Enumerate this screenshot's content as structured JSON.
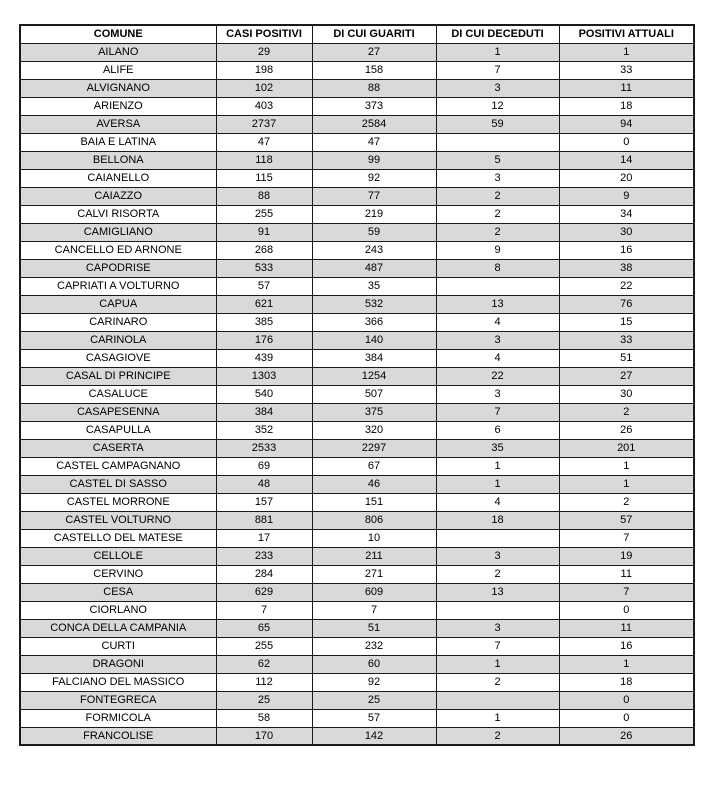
{
  "colors": {
    "stripe": "#d9d9d9",
    "border": "#1a1a1a"
  },
  "table": {
    "columns": [
      "COMUNE",
      "CASI POSITIVI",
      "DI CUI GUARITI",
      "DI CUI DECEDUTI",
      "POSITIVI ATTUALI"
    ],
    "rows": [
      [
        "AILANO",
        "29",
        "27",
        "1",
        "1"
      ],
      [
        "ALIFE",
        "198",
        "158",
        "7",
        "33"
      ],
      [
        "ALVIGNANO",
        "102",
        "88",
        "3",
        "11"
      ],
      [
        "ARIENZO",
        "403",
        "373",
        "12",
        "18"
      ],
      [
        "AVERSA",
        "2737",
        "2584",
        "59",
        "94"
      ],
      [
        "BAIA E LATINA",
        "47",
        "47",
        "",
        "0"
      ],
      [
        "BELLONA",
        "118",
        "99",
        "5",
        "14"
      ],
      [
        "CAIANELLO",
        "115",
        "92",
        "3",
        "20"
      ],
      [
        "CAIAZZO",
        "88",
        "77",
        "2",
        "9"
      ],
      [
        "CALVI RISORTA",
        "255",
        "219",
        "2",
        "34"
      ],
      [
        "CAMIGLIANO",
        "91",
        "59",
        "2",
        "30"
      ],
      [
        "CANCELLO ED ARNONE",
        "268",
        "243",
        "9",
        "16"
      ],
      [
        "CAPODRISE",
        "533",
        "487",
        "8",
        "38"
      ],
      [
        "CAPRIATI A VOLTURNO",
        "57",
        "35",
        "",
        "22"
      ],
      [
        "CAPUA",
        "621",
        "532",
        "13",
        "76"
      ],
      [
        "CARINARO",
        "385",
        "366",
        "4",
        "15"
      ],
      [
        "CARINOLA",
        "176",
        "140",
        "3",
        "33"
      ],
      [
        "CASAGIOVE",
        "439",
        "384",
        "4",
        "51"
      ],
      [
        "CASAL DI PRINCIPE",
        "1303",
        "1254",
        "22",
        "27"
      ],
      [
        "CASALUCE",
        "540",
        "507",
        "3",
        "30"
      ],
      [
        "CASAPESENNA",
        "384",
        "375",
        "7",
        "2"
      ],
      [
        "CASAPULLA",
        "352",
        "320",
        "6",
        "26"
      ],
      [
        "CASERTA",
        "2533",
        "2297",
        "35",
        "201"
      ],
      [
        "CASTEL CAMPAGNANO",
        "69",
        "67",
        "1",
        "1"
      ],
      [
        "CASTEL DI SASSO",
        "48",
        "46",
        "1",
        "1"
      ],
      [
        "CASTEL MORRONE",
        "157",
        "151",
        "4",
        "2"
      ],
      [
        "CASTEL VOLTURNO",
        "881",
        "806",
        "18",
        "57"
      ],
      [
        "CASTELLO DEL MATESE",
        "17",
        "10",
        "",
        "7"
      ],
      [
        "CELLOLE",
        "233",
        "211",
        "3",
        "19"
      ],
      [
        "CERVINO",
        "284",
        "271",
        "2",
        "11"
      ],
      [
        "CESA",
        "629",
        "609",
        "13",
        "7"
      ],
      [
        "CIORLANO",
        "7",
        "7",
        "",
        "0"
      ],
      [
        "CONCA DELLA CAMPANIA",
        "65",
        "51",
        "3",
        "11"
      ],
      [
        "CURTI",
        "255",
        "232",
        "7",
        "16"
      ],
      [
        "DRAGONI",
        "62",
        "60",
        "1",
        "1"
      ],
      [
        "FALCIANO DEL MASSICO",
        "112",
        "92",
        "2",
        "18"
      ],
      [
        "FONTEGRECA",
        "25",
        "25",
        "",
        "0"
      ],
      [
        "FORMICOLA",
        "58",
        "57",
        "1",
        "0"
      ],
      [
        "FRANCOLISE",
        "170",
        "142",
        "2",
        "26"
      ]
    ]
  }
}
